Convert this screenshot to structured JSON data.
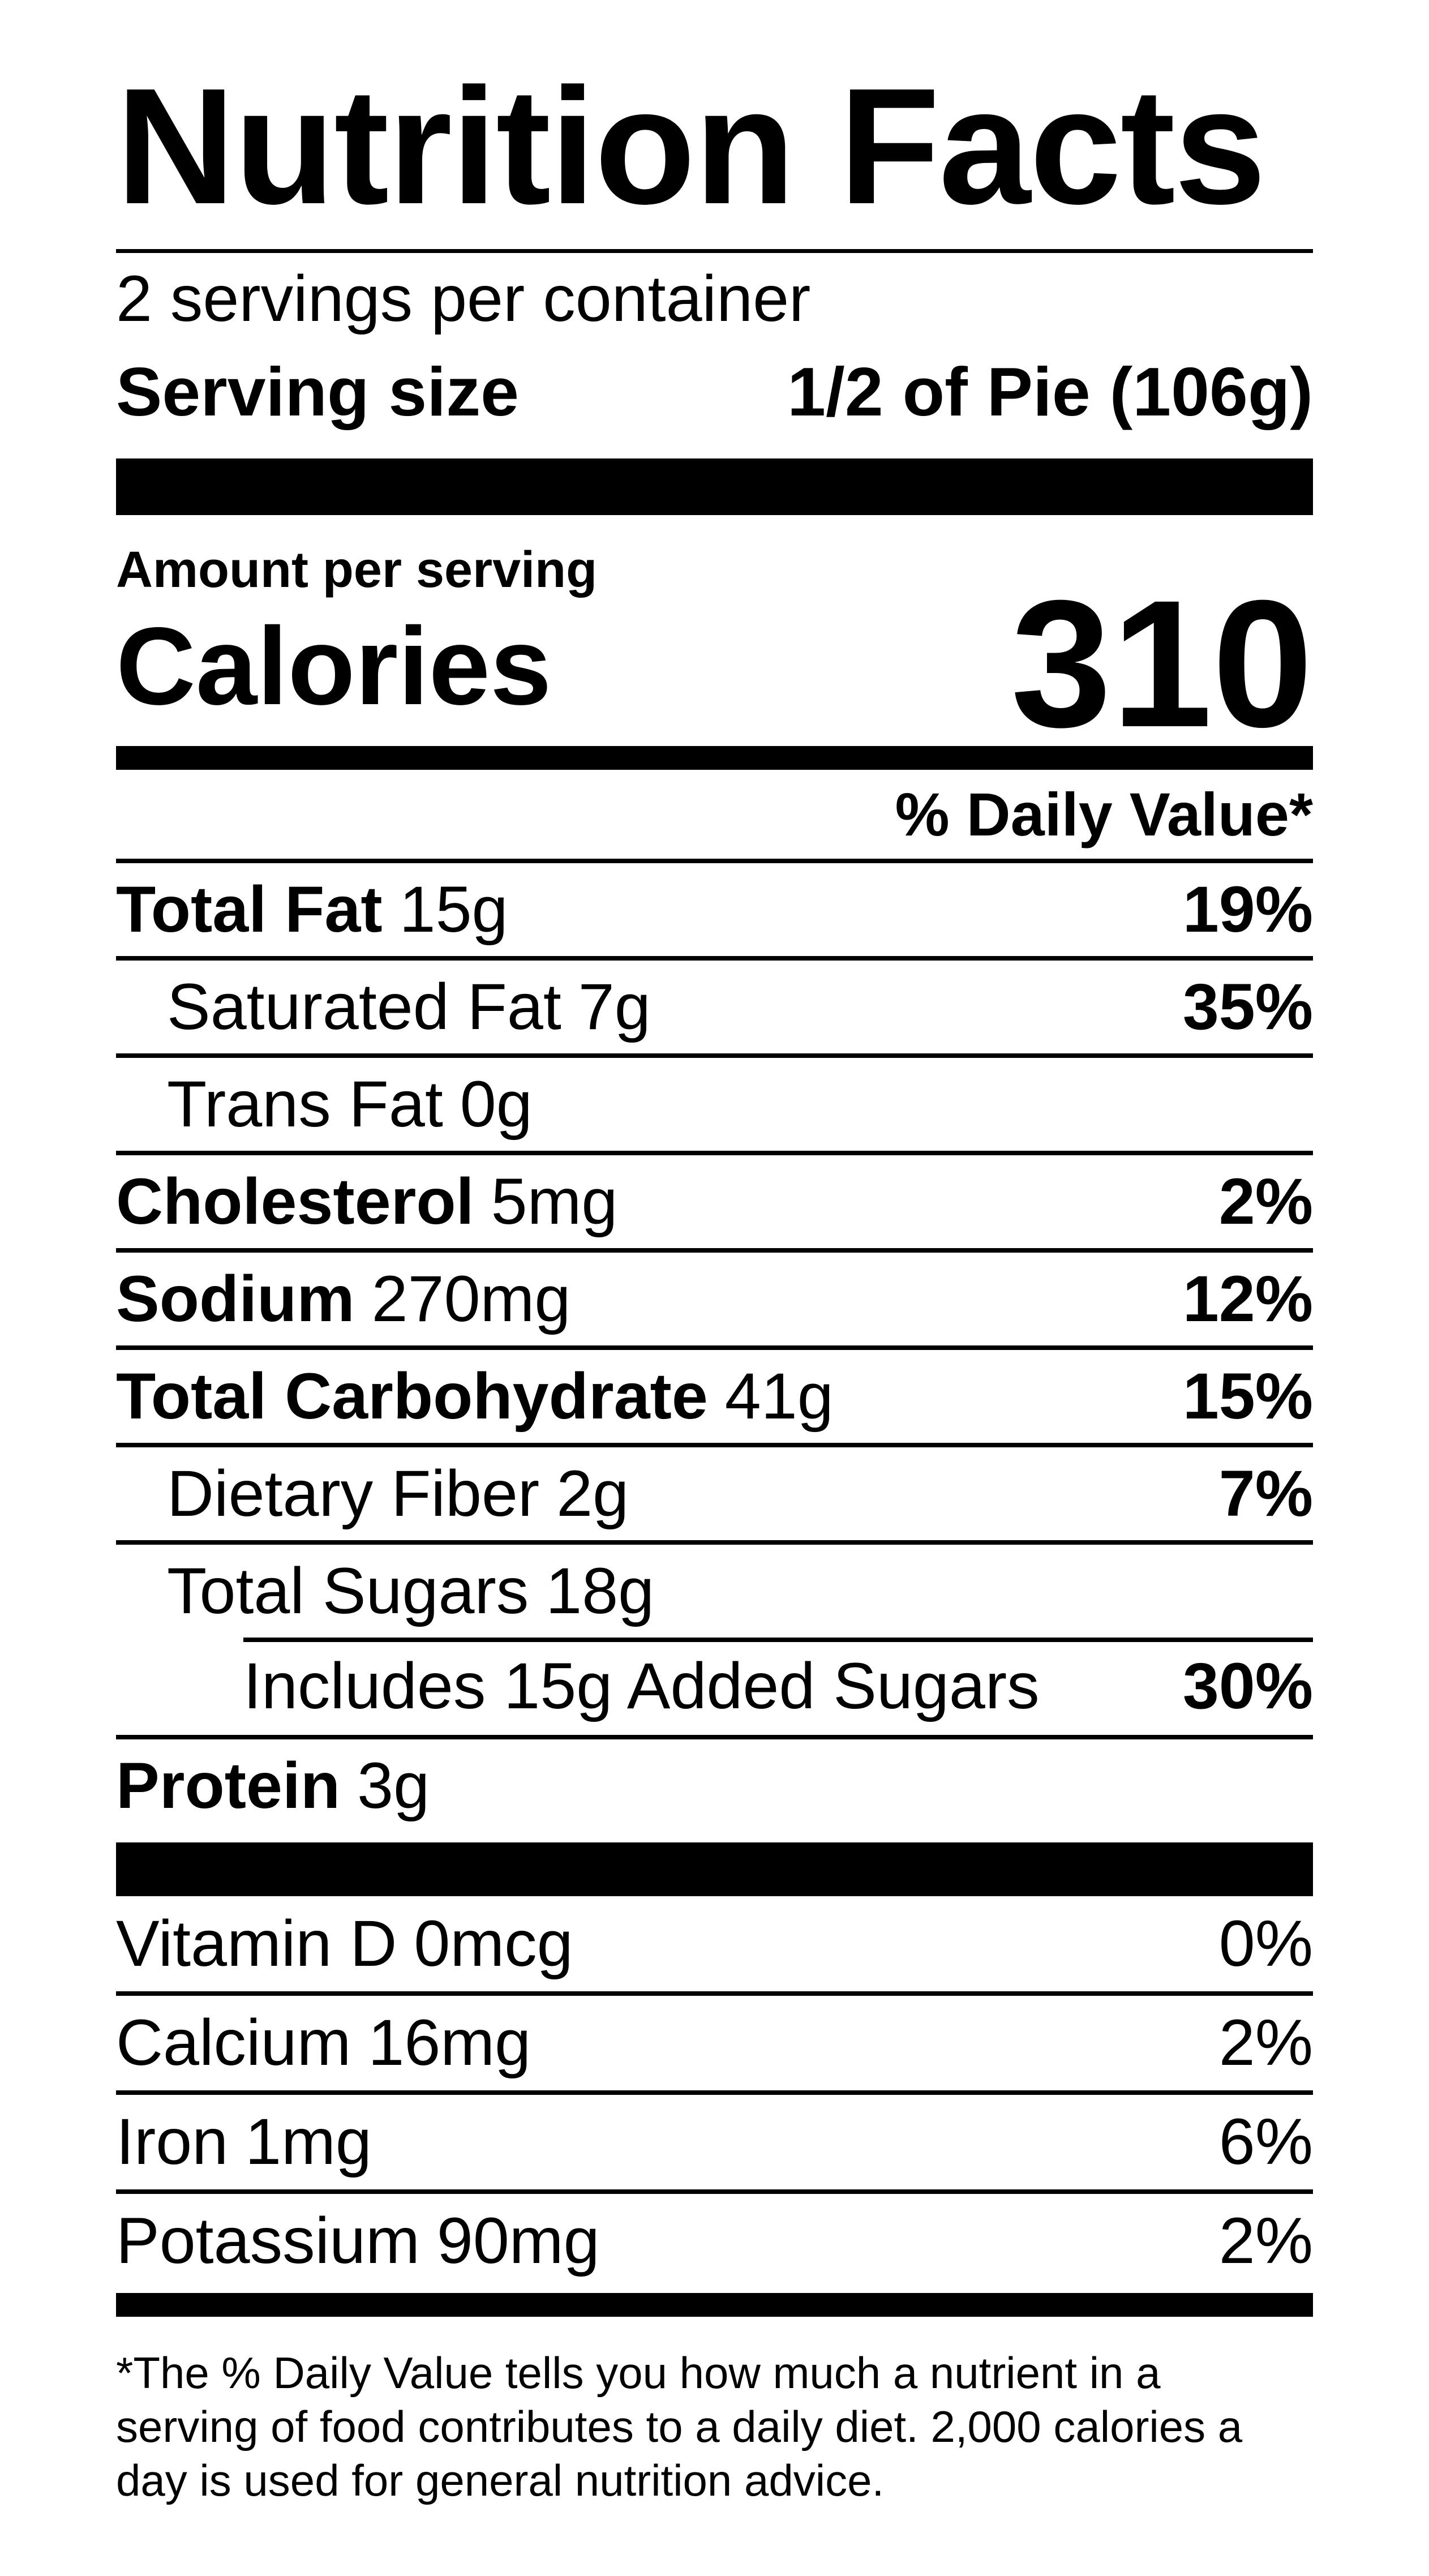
{
  "label": {
    "title": "Nutrition Facts",
    "servings_per_container": "2 servings per container",
    "serving_size_label": "Serving size",
    "serving_size_value": "1/2 of Pie (106g)",
    "amount_per_serving": "Amount per serving",
    "calories_label": "Calories",
    "calories_value": "310",
    "daily_value_header": "% Daily Value*",
    "footnote": "*The % Daily Value tells you how much a nutrient in a\nserving of food contributes to a daily diet. 2,000 calories a\nday is used for general nutrition advice."
  },
  "rows": [
    {
      "name": "Total Fat",
      "amount": "15g",
      "dv": "19%",
      "nameBold": true,
      "indent": 0
    },
    {
      "name": "Saturated Fat",
      "amount": "7g",
      "dv": "35%",
      "nameBold": false,
      "indent": 1
    },
    {
      "name": "Trans Fat",
      "amount": "0g",
      "dv": "",
      "nameBold": false,
      "indent": 1
    },
    {
      "name": "Cholesterol",
      "amount": "5mg",
      "dv": "2%",
      "nameBold": true,
      "indent": 0
    },
    {
      "name": "Sodium",
      "amount": "270mg",
      "dv": "12%",
      "nameBold": true,
      "indent": 0
    },
    {
      "name": "Total Carbohydrate",
      "amount": "41g",
      "dv": "15%",
      "nameBold": true,
      "indent": 0
    },
    {
      "name": "Dietary Fiber",
      "amount": "2g",
      "dv": "7%",
      "nameBold": false,
      "indent": 1
    },
    {
      "name": "Total Sugars",
      "amount": "18g",
      "dv": "",
      "nameBold": false,
      "indent": 1
    },
    {
      "name": "Includes 15g Added Sugars",
      "amount": "",
      "dv": "30%",
      "nameBold": false,
      "indent": 2
    },
    {
      "name": "Protein",
      "amount": "3g",
      "dv": "",
      "nameBold": true,
      "indent": 0
    }
  ],
  "vitamins": [
    {
      "name": "Vitamin D",
      "amount": "0mcg",
      "dv": "0%"
    },
    {
      "name": "Calcium",
      "amount": "16mg",
      "dv": "2%"
    },
    {
      "name": "Iron",
      "amount": "1mg",
      "dv": "6%"
    },
    {
      "name": "Potassium",
      "amount": "90mg",
      "dv": "2%"
    }
  ],
  "colors": {
    "ink": "#000000",
    "paper": "#ffffff"
  }
}
